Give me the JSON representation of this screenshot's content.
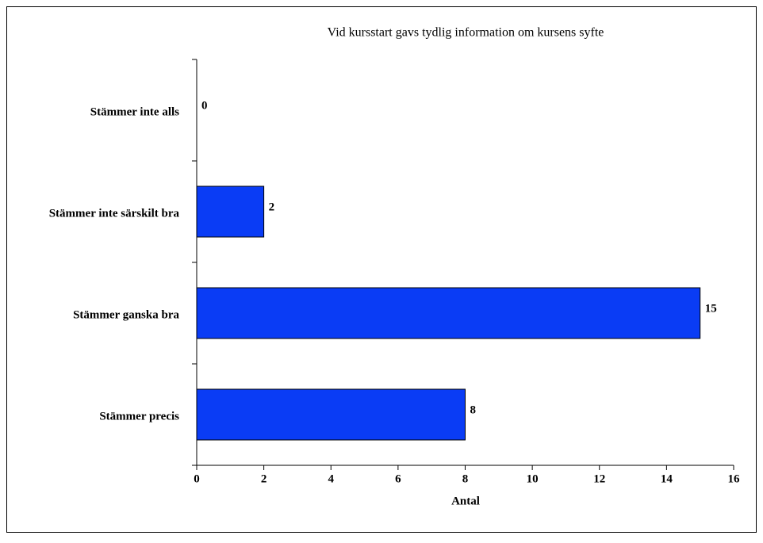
{
  "chart_data": {
    "type": "bar",
    "orientation": "horizontal",
    "title": "Vid kursstart gavs tydlig information om kursens syfte",
    "categories": [
      "Stämmer inte alls",
      "Stämmer inte särskilt bra",
      "Stämmer ganska bra",
      "Stämmer precis"
    ],
    "values": [
      0,
      2,
      15,
      8
    ],
    "color": "#0a3cf5",
    "xlabel": "Antal",
    "xlim": [
      0,
      16
    ],
    "xticks": [
      0,
      2,
      4,
      6,
      8,
      10,
      12,
      14,
      16
    ],
    "grid": false
  }
}
